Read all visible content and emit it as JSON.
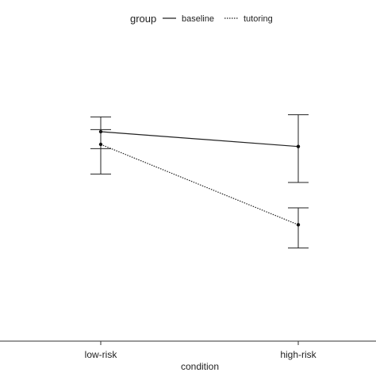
{
  "chart_data": {
    "type": "line",
    "categories": [
      "low-risk",
      "high-risk"
    ],
    "xlabel": "condition",
    "ylabel": "",
    "ylim": [
      0,
      15
    ],
    "legend": {
      "title": "group",
      "position": "top"
    },
    "series": [
      {
        "name": "baseline",
        "style": "solid",
        "values": [
          9.9,
          9.2
        ],
        "error_low": [
          9.1,
          7.5
        ],
        "error_high": [
          10.6,
          10.7
        ]
      },
      {
        "name": "tutoring",
        "style": "dotted",
        "values": [
          9.3,
          5.5
        ],
        "error_low": [
          7.9,
          4.4
        ],
        "error_high": [
          10.0,
          6.3
        ]
      }
    ]
  }
}
